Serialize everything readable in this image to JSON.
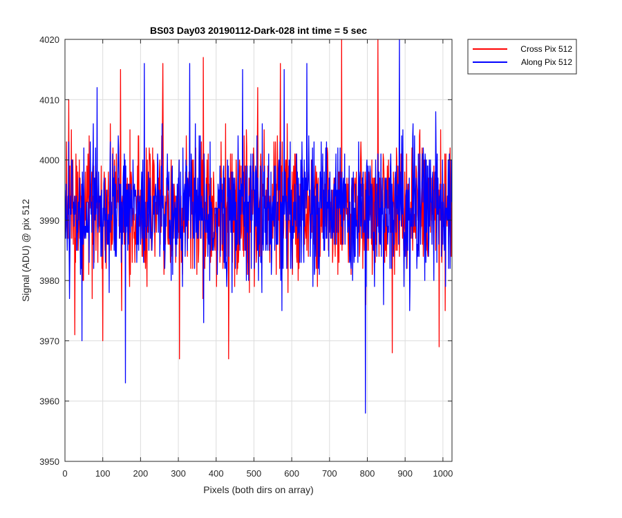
{
  "chart_data": {
    "type": "line",
    "title": "BS03 Day03 20190112-Dark-028 int time = 5 sec",
    "xlabel": "Pixels (both dirs on array)",
    "ylabel": "Signal (ADU) @ pix 512",
    "xlim": [
      0,
      1024
    ],
    "ylim": [
      3950,
      4020
    ],
    "xticks": [
      0,
      100,
      200,
      300,
      400,
      500,
      600,
      700,
      800,
      900,
      1000
    ],
    "yticks": [
      3950,
      3960,
      3970,
      3980,
      3990,
      4000,
      4010,
      4020
    ],
    "grid": true,
    "legend_position": "outside-top-right",
    "series": [
      {
        "name": "Cross Pix 512",
        "color": "#ff0000",
        "n_points": 1024,
        "mean": 3992,
        "std": 5.5,
        "seed": 1729,
        "extremes": [
          {
            "x": 10,
            "y": 4010
          },
          {
            "x": 26,
            "y": 3971
          },
          {
            "x": 100,
            "y": 3970
          },
          {
            "x": 147,
            "y": 4015
          },
          {
            "x": 259,
            "y": 4016
          },
          {
            "x": 303,
            "y": 3967
          },
          {
            "x": 366,
            "y": 4017
          },
          {
            "x": 433,
            "y": 3967
          },
          {
            "x": 510,
            "y": 4012
          },
          {
            "x": 570,
            "y": 4016
          },
          {
            "x": 732,
            "y": 4020
          },
          {
            "x": 828,
            "y": 4020
          },
          {
            "x": 866,
            "y": 3968
          },
          {
            "x": 990,
            "y": 3969
          }
        ]
      },
      {
        "name": "Along Pix 512",
        "color": "#0000ff",
        "n_points": 1024,
        "mean": 3992,
        "std": 5.5,
        "seed": 4242,
        "extremes": [
          {
            "x": 45,
            "y": 3970
          },
          {
            "x": 85,
            "y": 4012
          },
          {
            "x": 160,
            "y": 3963
          },
          {
            "x": 210,
            "y": 4016
          },
          {
            "x": 330,
            "y": 4016
          },
          {
            "x": 470,
            "y": 4015
          },
          {
            "x": 580,
            "y": 4015
          },
          {
            "x": 640,
            "y": 4016
          },
          {
            "x": 795,
            "y": 3958
          },
          {
            "x": 885,
            "y": 4020
          }
        ]
      }
    ]
  }
}
